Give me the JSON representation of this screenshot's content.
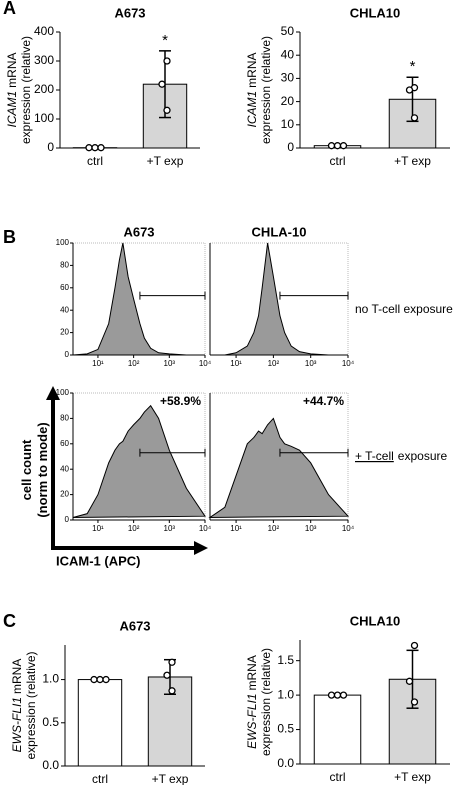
{
  "panel_labels": [
    "A",
    "B",
    "C"
  ],
  "flow_labels": {
    "row_labels": [
      [
        "no T-cell exposure"
      ],
      [
        "+ T-cell",
        "exposure"
      ]
    ],
    "y_axis_label": [
      "cell count",
      "(norm to mode)"
    ],
    "x_axis_label": "ICAM-1 (APC)"
  },
  "chart_data": [
    {
      "type": "bar",
      "title": "A673",
      "ylabel": [
        "ICAM1",
        "mRNA",
        "expression (relative)"
      ],
      "categories": [
        "ctrl",
        "+T exp"
      ],
      "values": [
        1,
        220
      ],
      "errors": [
        0,
        115
      ],
      "points": [
        [
          1,
          1,
          1
        ],
        [
          300,
          220,
          130
        ]
      ],
      "colors": [
        "#ffffff",
        "#d6d6d6"
      ],
      "annotation": "*",
      "ylim": [
        0,
        400
      ],
      "yticks": [
        0,
        100,
        200,
        300,
        400
      ]
    },
    {
      "type": "bar",
      "title": "CHLA10",
      "ylabel": [
        "ICAM1",
        "mRNA",
        "expression (relative)"
      ],
      "categories": [
        "ctrl",
        "+T exp"
      ],
      "values": [
        1,
        21
      ],
      "errors": [
        0,
        9.5
      ],
      "points": [
        [
          1,
          1,
          1
        ],
        [
          26,
          25,
          13
        ]
      ],
      "colors": [
        "#ffffff",
        "#d6d6d6"
      ],
      "annotation": "*",
      "ylim": [
        0,
        50
      ],
      "yticks": [
        0,
        10,
        20,
        30,
        40,
        50
      ]
    },
    {
      "type": "area",
      "title": "A673",
      "xlog": true,
      "x": [
        2,
        5,
        10,
        20,
        30,
        40,
        50,
        70,
        100,
        150,
        200,
        300,
        500,
        1000,
        3000,
        10000
      ],
      "values": [
        0,
        1,
        5,
        28,
        60,
        85,
        100,
        70,
        50,
        28,
        15,
        6,
        2,
        1,
        0,
        0
      ],
      "color": "#9a9a9a",
      "gate": [
        150,
        10000
      ],
      "xlim": [
        2,
        10000
      ],
      "ylim": [
        0,
        100
      ],
      "yticks": [
        0,
        20,
        40,
        60,
        80,
        100
      ],
      "xticks": [
        {
          "value": 10,
          "label": "10¹"
        },
        {
          "value": 100,
          "label": "10²"
        },
        {
          "value": 1000,
          "label": "10³"
        },
        {
          "value": 10000,
          "label": "10⁴"
        }
      ]
    },
    {
      "type": "area",
      "title": "CHLA-10",
      "xlog": true,
      "x": [
        2,
        5,
        10,
        20,
        30,
        40,
        50,
        70,
        100,
        150,
        200,
        300,
        500,
        1000,
        3000,
        10000
      ],
      "values": [
        0,
        0,
        2,
        8,
        20,
        35,
        60,
        100,
        70,
        35,
        20,
        8,
        3,
        1,
        0,
        0
      ],
      "color": "#9a9a9a",
      "gate": [
        150,
        10000
      ],
      "xlim": [
        2,
        10000
      ],
      "ylim": [
        0,
        100
      ],
      "xticks": [
        {
          "value": 10,
          "label": "10¹"
        },
        {
          "value": 100,
          "label": "10²"
        },
        {
          "value": 1000,
          "label": "10³"
        },
        {
          "value": 10000,
          "label": "10⁴"
        }
      ]
    },
    {
      "type": "area",
      "xlog": true,
      "x": [
        2,
        5,
        10,
        20,
        30,
        40,
        50,
        70,
        100,
        150,
        200,
        300,
        500,
        1000,
        3000,
        10000
      ],
      "values": [
        2,
        5,
        20,
        45,
        55,
        60,
        62,
        70,
        75,
        80,
        85,
        90,
        80,
        55,
        25,
        3
      ],
      "color": "#9a9a9a",
      "gate": [
        150,
        10000
      ],
      "gate_label": "+58.9%",
      "xlim": [
        2,
        10000
      ],
      "ylim": [
        0,
        100
      ],
      "yticks": [
        0,
        20,
        40,
        60,
        80,
        100
      ],
      "xticks": [
        {
          "value": 10,
          "label": "10¹"
        },
        {
          "value": 100,
          "label": "10²"
        },
        {
          "value": 1000,
          "label": "10³"
        },
        {
          "value": 10000,
          "label": "10⁴"
        }
      ]
    },
    {
      "type": "area",
      "xlog": true,
      "x": [
        2,
        5,
        10,
        20,
        30,
        40,
        50,
        70,
        100,
        150,
        200,
        300,
        500,
        1000,
        3000,
        10000
      ],
      "values": [
        2,
        10,
        35,
        60,
        65,
        70,
        68,
        75,
        80,
        65,
        60,
        58,
        55,
        45,
        20,
        3
      ],
      "color": "#9a9a9a",
      "gate": [
        150,
        10000
      ],
      "gate_label": "+44.7%",
      "xlim": [
        2,
        10000
      ],
      "ylim": [
        0,
        100
      ],
      "xticks": [
        {
          "value": 10,
          "label": "10¹"
        },
        {
          "value": 100,
          "label": "10²"
        },
        {
          "value": 1000,
          "label": "10³"
        },
        {
          "value": 10000,
          "label": "10⁴"
        }
      ]
    },
    {
      "type": "bar",
      "title": "A673",
      "ylabel": [
        "EWS-FLI1",
        "mRNA",
        "expression (relative)"
      ],
      "categories": [
        "ctrl",
        "+T exp"
      ],
      "values": [
        1.0,
        1.03
      ],
      "errors": [
        0,
        0.2
      ],
      "points": [
        [
          1.0,
          1.0,
          1.0
        ],
        [
          1.2,
          1.05,
          0.87
        ]
      ],
      "colors": [
        "#ffffff",
        "#d6d6d6"
      ],
      "ylim": [
        0,
        1.4
      ],
      "yticks": [
        {
          "value": 0,
          "label": "0.0"
        },
        {
          "value": 0.5,
          "label": "0.5"
        },
        {
          "value": 1,
          "label": "1.0"
        }
      ]
    },
    {
      "type": "bar",
      "title": "CHLA10",
      "ylabel": [
        "EWS-FLI1",
        "mRNA",
        "expression (relative)"
      ],
      "categories": [
        "ctrl",
        "+T exp"
      ],
      "values": [
        1.0,
        1.23
      ],
      "errors": [
        0,
        0.42
      ],
      "points": [
        [
          1.0,
          1.0,
          1.0
        ],
        [
          1.72,
          1.2,
          0.9
        ]
      ],
      "colors": [
        "#ffffff",
        "#d6d6d6"
      ],
      "ylim": [
        0,
        1.8
      ],
      "yticks": [
        {
          "value": 0,
          "label": "0.0"
        },
        {
          "value": 0.5,
          "label": "0.5"
        },
        {
          "value": 1,
          "label": "1.0"
        },
        {
          "value": 1.5,
          "label": "1.5"
        }
      ]
    }
  ]
}
